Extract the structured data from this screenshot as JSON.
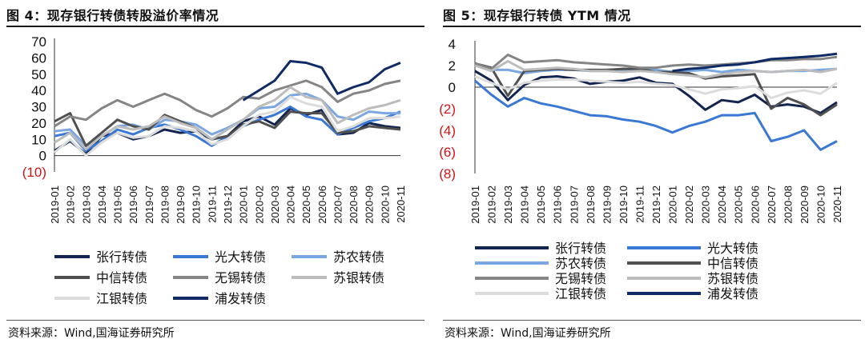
{
  "colors": {
    "s1": "#13254f",
    "s2": "#3a78d6",
    "s3": "#7aa7e2",
    "s4": "#505050",
    "s5": "#858585",
    "s6": "#bcbcbc",
    "s7": "#dcdcdc",
    "s8": "#0f2a64",
    "neg": "#d41414"
  },
  "left": {
    "title": "图 4：现存银行转债转股溢价率情况",
    "source": "资料来源：Wind,国海证券研究所"
  },
  "right": {
    "title": "图 5：现存银行转债 YTM 情况",
    "source": "资料来源：Wind,国海证券研究所"
  },
  "chart_data": [
    {
      "type": "line",
      "title": "图 4：现存银行转债转股溢价率情况",
      "ylim": [
        -10,
        70
      ],
      "yticks": [
        {
          "v": 70,
          "label": "70"
        },
        {
          "v": 60,
          "label": "60"
        },
        {
          "v": 50,
          "label": "50"
        },
        {
          "v": 40,
          "label": "40"
        },
        {
          "v": 30,
          "label": "30"
        },
        {
          "v": 20,
          "label": "20"
        },
        {
          "v": 10,
          "label": "10"
        },
        {
          "v": 0,
          "label": "0"
        },
        {
          "v": -10,
          "label": "(10)"
        }
      ],
      "x": [
        "2019-01",
        "2019-02",
        "2019-03",
        "2019-04",
        "2019-05",
        "2019-06",
        "2019-07",
        "2019-08",
        "2019-09",
        "2019-10",
        "2019-11",
        "2019-12",
        "2020-01",
        "2020-02",
        "2020-03",
        "2020-04",
        "2020-05",
        "2020-06",
        "2020-07",
        "2020-08",
        "2020-09",
        "2020-10",
        "2020-11"
      ],
      "xstart": 2019.0,
      "xend": 2020.94,
      "legend_cols": 3,
      "series": [
        {
          "name": "张行转债",
          "color": "s1",
          "w": 3,
          "values": [
            3,
            9,
            1,
            12,
            14,
            10,
            12,
            16,
            14,
            15,
            10,
            12,
            21,
            24,
            19,
            29,
            25,
            28,
            13,
            14,
            20,
            18,
            17
          ]
        },
        {
          "name": "光大转债",
          "color": "s2",
          "w": 3,
          "values": [
            12,
            14,
            3,
            9,
            16,
            13,
            17,
            19,
            16,
            12,
            6,
            12,
            18,
            22,
            25,
            30,
            24,
            22,
            13,
            17,
            21,
            23,
            27
          ]
        },
        {
          "name": "苏农转债",
          "color": "s3",
          "w": 3,
          "values": [
            15,
            16,
            6,
            12,
            18,
            19,
            16,
            22,
            21,
            19,
            13,
            17,
            22,
            29,
            30,
            37,
            38,
            34,
            24,
            22,
            27,
            26,
            26
          ]
        },
        {
          "name": "中信转债",
          "color": "s4",
          "w": 3,
          "values": [
            21,
            26,
            6,
            14,
            22,
            18,
            16,
            25,
            21,
            17,
            10,
            12,
            19,
            21,
            17,
            27,
            26,
            26,
            14,
            15,
            18,
            17,
            16
          ]
        },
        {
          "name": "无锡转债",
          "color": "s5",
          "w": 3,
          "values": [
            18,
            24,
            22,
            29,
            34,
            30,
            34,
            38,
            34,
            28,
            24,
            29,
            36,
            35,
            40,
            43,
            46,
            42,
            33,
            38,
            40,
            44,
            46
          ]
        },
        {
          "name": "苏银转债",
          "color": "s6",
          "w": 3,
          "values": [
            8,
            14,
            4,
            12,
            18,
            16,
            18,
            24,
            20,
            17,
            10,
            16,
            22,
            30,
            34,
            42,
            36,
            34,
            20,
            25,
            29,
            31,
            34
          ]
        },
        {
          "name": "江银转债",
          "color": "s7",
          "w": 3,
          "values": [
            2,
            10,
            0,
            8,
            14,
            11,
            12,
            18,
            17,
            15,
            7,
            10,
            18,
            25,
            27,
            36,
            32,
            30,
            15,
            18,
            23,
            23,
            24
          ]
        },
        {
          "name": "浦发转债",
          "color": "s8",
          "w": 3,
          "values": [
            null,
            null,
            null,
            null,
            null,
            null,
            null,
            null,
            null,
            null,
            null,
            null,
            34,
            40,
            46,
            58,
            57,
            54,
            38,
            42,
            45,
            53,
            57
          ]
        }
      ]
    },
    {
      "type": "line",
      "title": "图 5：现存银行转债 YTM 情况",
      "ylim": [
        -8,
        4
      ],
      "yticks": [
        {
          "v": 4,
          "label": "4"
        },
        {
          "v": 2,
          "label": "2"
        },
        {
          "v": 0,
          "label": "0"
        },
        {
          "v": -2,
          "label": "(2)"
        },
        {
          "v": -4,
          "label": "(4)"
        },
        {
          "v": -6,
          "label": "(6)"
        },
        {
          "v": -8,
          "label": "(8)"
        }
      ],
      "x": [
        "2019-01",
        "2019-02",
        "2019-03",
        "2019-04",
        "2019-05",
        "2019-06",
        "2019-07",
        "2019-08",
        "2019-09",
        "2019-10",
        "2019-11",
        "2019-12",
        "2020-01",
        "2020-02",
        "2020-03",
        "2020-04",
        "2020-05",
        "2020-06",
        "2020-07",
        "2020-08",
        "2020-09",
        "2020-10",
        "2020-11"
      ],
      "xstart": 2019.0,
      "xend": 2020.94,
      "legend_cols": 2,
      "series": [
        {
          "name": "张行转债",
          "color": "s1",
          "w": 3,
          "values": [
            1.5,
            0.6,
            -1.2,
            0.2,
            0.9,
            1.0,
            0.8,
            0.3,
            0.5,
            0.6,
            0.9,
            0.4,
            0.3,
            -0.8,
            -2.1,
            -1.2,
            -1.4,
            -0.7,
            -1.8,
            -1.6,
            -1.8,
            -2.4,
            -1.4
          ]
        },
        {
          "name": "光大转债",
          "color": "s2",
          "w": 3,
          "values": [
            0.6,
            -0.7,
            -1.8,
            -1.0,
            -1.5,
            -1.8,
            -2.2,
            -2.6,
            -2.7,
            -3.0,
            -3.2,
            -3.6,
            -4.2,
            -3.6,
            -3.2,
            -2.6,
            -2.6,
            -2.4,
            -5.0,
            -4.6,
            -4.0,
            -5.8,
            -5.0
          ]
        },
        {
          "name": "苏农转债",
          "color": "s3",
          "w": 3,
          "values": [
            2.2,
            1.6,
            1.6,
            1.3,
            1.5,
            1.6,
            1.6,
            1.5,
            1.5,
            1.5,
            1.6,
            1.6,
            1.4,
            1.5,
            1.6,
            1.4,
            1.6,
            1.5,
            1.4,
            1.5,
            1.5,
            1.6,
            1.7
          ]
        },
        {
          "name": "中信转债",
          "color": "s4",
          "w": 3,
          "values": [
            2.2,
            1.8,
            -0.8,
            1.5,
            1.6,
            1.7,
            1.6,
            1.6,
            1.6,
            1.7,
            1.7,
            1.4,
            1.4,
            1.3,
            0.8,
            1.0,
            1.1,
            1.2,
            -2.0,
            -1.0,
            -1.6,
            -2.6,
            -1.6
          ]
        },
        {
          "name": "无锡转债",
          "color": "s5",
          "w": 3,
          "values": [
            2.2,
            1.7,
            3.0,
            2.3,
            2.4,
            2.5,
            2.3,
            2.2,
            2.1,
            2.0,
            1.8,
            1.8,
            2.0,
            2.1,
            2.0,
            2.1,
            2.2,
            2.3,
            2.5,
            2.5,
            2.6,
            2.6,
            2.8
          ]
        },
        {
          "name": "苏银转债",
          "color": "s6",
          "w": 3,
          "values": [
            2.0,
            1.5,
            2.4,
            1.6,
            1.7,
            1.8,
            1.7,
            1.5,
            1.5,
            1.4,
            1.5,
            1.4,
            1.2,
            1.1,
            0.9,
            1.2,
            1.4,
            1.5,
            1.4,
            1.5,
            1.6,
            1.4,
            1.7
          ]
        },
        {
          "name": "江银转债",
          "color": "s7",
          "w": 3,
          "values": [
            1.0,
            0.4,
            -0.2,
            0.4,
            0.6,
            0.7,
            0.7,
            0.6,
            0.5,
            0.4,
            0.5,
            0.3,
            0.2,
            -0.2,
            -0.6,
            -0.2,
            -0.1,
            0.1,
            -1.0,
            -0.5,
            -0.3,
            -0.6,
            0.4
          ]
        },
        {
          "name": "浦发转债",
          "color": "s8",
          "w": 3,
          "values": [
            null,
            null,
            null,
            null,
            null,
            null,
            null,
            null,
            null,
            null,
            null,
            null,
            1.5,
            1.7,
            1.8,
            2.0,
            2.1,
            2.3,
            2.6,
            2.7,
            2.8,
            2.9,
            3.1
          ]
        }
      ]
    }
  ]
}
